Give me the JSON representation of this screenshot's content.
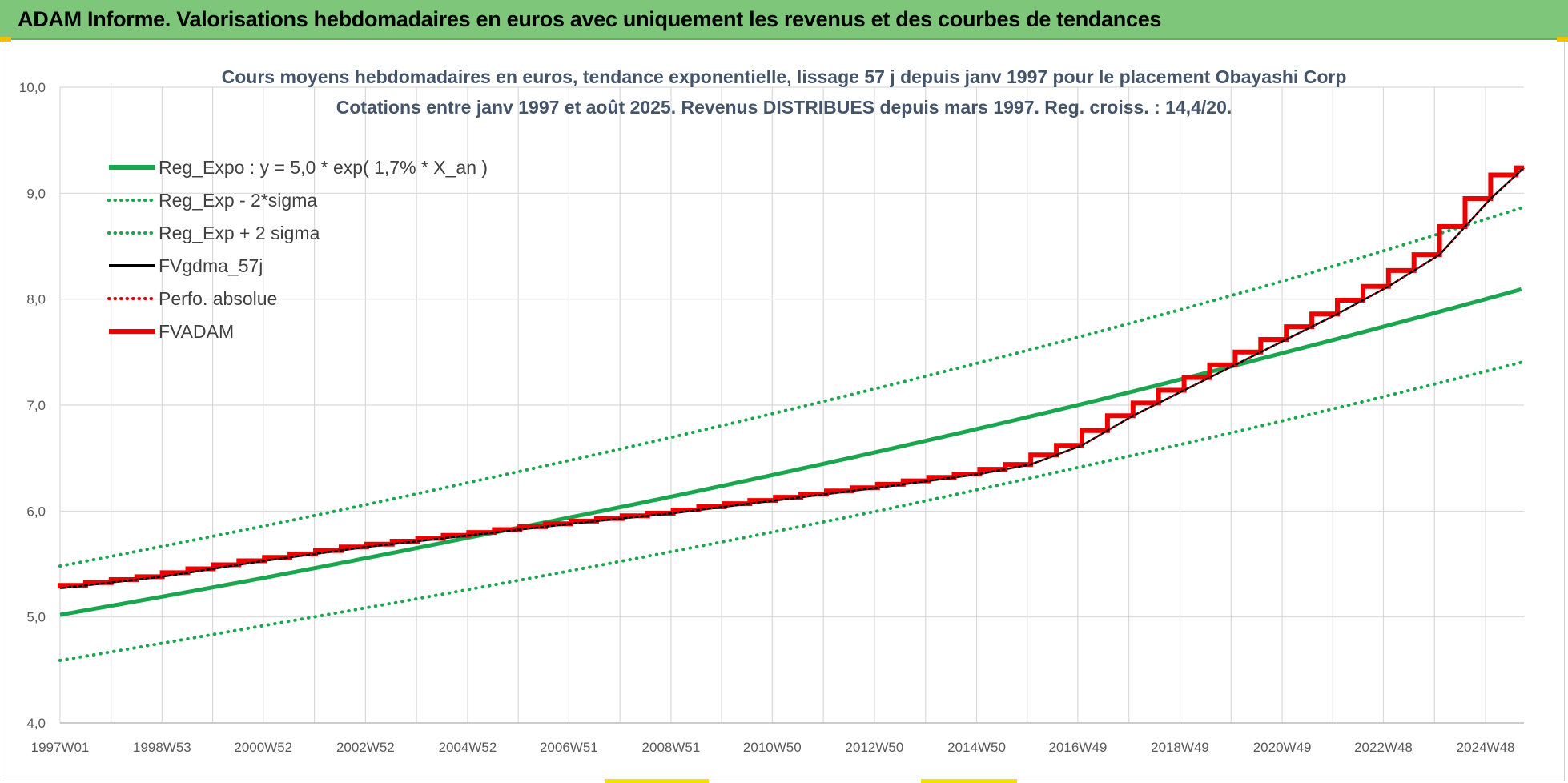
{
  "header": {
    "title": "ADAM Informe. Valorisations hebdomadaires en euros avec uniquement les revenus et des courbes de tendances"
  },
  "colors": {
    "banner": "#7dc67a",
    "trend": "#1aa64e",
    "fvgdma": "#000000",
    "perfo": "#e00000",
    "fvadam": "#ee0000"
  },
  "chart_data": {
    "type": "line",
    "title": "Cours moyens hebdomadaires en euros, tendance exponentielle, lissage 57 j depuis janv 1997 pour le placement Obayashi Corp",
    "subtitle": "Cotations entre janv 1997 et août 2025. Revenus DISTRIBUES depuis mars 1997. Reg. croiss. : 14,4/20.",
    "x_range": [
      "1997W01",
      "2025W35"
    ],
    "x_tick_labels": [
      "1997W01",
      "1998W53",
      "2000W52",
      "2002W52",
      "2004W52",
      "2006W51",
      "2008W51",
      "2010W50",
      "2012W50",
      "2014W50",
      "2016W49",
      "2018W49",
      "2020W49",
      "2022W48",
      "2024W48"
    ],
    "ylim": [
      4.0,
      10.0
    ],
    "y_tick_labels": [
      "4,0",
      "5,0",
      "6,0",
      "7,0",
      "8,0",
      "9,0",
      "10,0"
    ],
    "grid": true,
    "legend_position": "top-left",
    "series": [
      {
        "name": "Reg_Expo : y = 5,0 * exp( 1,7% *  X_an )",
        "style": "solid",
        "color": "#1aa64e",
        "x": [
          "1997W01",
          "2001W01",
          "2005W01",
          "2009W01",
          "2013W01",
          "2017W01",
          "2021W01",
          "2025W35"
        ],
        "values": [
          5.02,
          5.37,
          5.75,
          6.14,
          6.56,
          7.01,
          7.5,
          8.1
        ]
      },
      {
        "name": "Reg_Exp - 2*sigma",
        "style": "dotted",
        "color": "#1aa64e",
        "x": [
          "1997W01",
          "2001W01",
          "2005W01",
          "2009W01",
          "2013W01",
          "2017W01",
          "2021W01",
          "2025W35"
        ],
        "values": [
          4.59,
          4.92,
          5.26,
          5.62,
          6.0,
          6.42,
          6.86,
          7.41
        ]
      },
      {
        "name": "Reg_Exp + 2 sigma",
        "style": "dotted",
        "color": "#1aa64e",
        "x": [
          "1997W01",
          "2001W01",
          "2005W01",
          "2009W01",
          "2013W01",
          "2017W01",
          "2021W01",
          "2025W35"
        ],
        "values": [
          5.48,
          5.86,
          6.27,
          6.7,
          7.16,
          7.65,
          8.18,
          8.87
        ]
      },
      {
        "name": "FVgdma_57j",
        "style": "solid-thin",
        "color": "#000000",
        "x": [
          "1997W01",
          "1999W01",
          "2001W01",
          "2003W01",
          "2005W01",
          "2007W01",
          "2009W01",
          "2011W01",
          "2013W01",
          "2015W01",
          "2016W01",
          "2017W01",
          "2018W01",
          "2019W01",
          "2020W01",
          "2021W01",
          "2022W01",
          "2023W01",
          "2024W01",
          "2025W01",
          "2025W35"
        ],
        "values": [
          5.27,
          5.38,
          5.53,
          5.66,
          5.77,
          5.88,
          5.98,
          6.1,
          6.22,
          6.35,
          6.44,
          6.62,
          6.9,
          7.14,
          7.38,
          7.62,
          7.86,
          8.12,
          8.42,
          8.95,
          9.24
        ]
      },
      {
        "name": "Perfo. absolue",
        "style": "dotted",
        "color": "#e00000",
        "x": [
          "1997W01",
          "1999W01",
          "2001W01",
          "2003W01",
          "2005W01",
          "2007W01",
          "2009W01",
          "2011W01",
          "2013W01",
          "2015W01",
          "2016W01",
          "2017W01",
          "2018W01",
          "2019W01",
          "2020W01",
          "2021W01",
          "2022W01",
          "2023W01",
          "2024W01",
          "2025W01",
          "2025W35"
        ],
        "values": [
          5.27,
          5.38,
          5.53,
          5.66,
          5.77,
          5.88,
          5.98,
          6.1,
          6.22,
          6.35,
          6.44,
          6.62,
          6.9,
          7.14,
          7.38,
          7.62,
          7.86,
          8.12,
          8.42,
          8.95,
          9.24
        ]
      },
      {
        "name": "FVADAM",
        "style": "step",
        "color": "#ee0000",
        "x": [
          "1997W01",
          "1999W01",
          "2001W01",
          "2003W01",
          "2005W01",
          "2007W01",
          "2009W01",
          "2011W01",
          "2013W01",
          "2015W01",
          "2016W01",
          "2017W01",
          "2018W01",
          "2019W01",
          "2020W01",
          "2021W01",
          "2022W01",
          "2023W01",
          "2024W01",
          "2025W01",
          "2025W35"
        ],
        "values": [
          5.27,
          5.38,
          5.53,
          5.66,
          5.77,
          5.88,
          5.98,
          6.1,
          6.22,
          6.35,
          6.44,
          6.62,
          6.9,
          7.14,
          7.38,
          7.62,
          7.86,
          8.12,
          8.42,
          8.95,
          9.24
        ]
      }
    ]
  }
}
